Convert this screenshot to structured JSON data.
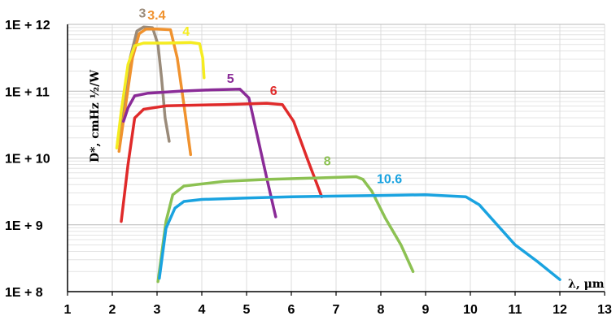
{
  "chart_data": {
    "type": "line",
    "title": "",
    "xlabel": "λ, μm",
    "ylabel": "D*, cmHz ½/W",
    "x_ticks": [
      "1",
      "2",
      "3",
      "4",
      "5",
      "6",
      "7",
      "8",
      "9",
      "10",
      "11",
      "12",
      "13"
    ],
    "y_ticks": [
      "1E + 8",
      "1E + 9",
      "1E + 10",
      "1E + 11",
      "1E + 12"
    ],
    "xlim": [
      1,
      13
    ],
    "ylim_log10": [
      8,
      12
    ],
    "y_scale": "log",
    "grid": true,
    "legend": "none (series labeled inline)",
    "series": [
      {
        "name": "3",
        "color": "#9a8b7a",
        "points": [
          [
            2.12,
            10.25
          ],
          [
            2.25,
            10.8
          ],
          [
            2.4,
            11.5
          ],
          [
            2.55,
            11.9
          ],
          [
            2.7,
            11.96
          ],
          [
            2.9,
            11.95
          ],
          [
            3.02,
            11.7
          ],
          [
            3.1,
            11.2
          ],
          [
            3.18,
            10.6
          ],
          [
            3.27,
            10.25
          ]
        ]
      },
      {
        "name": "3.4",
        "color": "#f0922e",
        "points": [
          [
            2.15,
            10.1
          ],
          [
            2.3,
            10.8
          ],
          [
            2.45,
            11.5
          ],
          [
            2.6,
            11.86
          ],
          [
            2.75,
            11.93
          ],
          [
            3.0,
            11.93
          ],
          [
            3.3,
            11.92
          ],
          [
            3.45,
            11.5
          ],
          [
            3.6,
            10.8
          ],
          [
            3.75,
            10.05
          ]
        ]
      },
      {
        "name": "4",
        "color": "#f5ec20",
        "points": [
          [
            2.1,
            10.15
          ],
          [
            2.2,
            10.7
          ],
          [
            2.35,
            11.4
          ],
          [
            2.5,
            11.68
          ],
          [
            2.7,
            11.72
          ],
          [
            3.2,
            11.72
          ],
          [
            3.75,
            11.73
          ],
          [
            3.95,
            11.71
          ],
          [
            4.02,
            11.5
          ],
          [
            4.05,
            11.2
          ]
        ]
      },
      {
        "name": "5",
        "color": "#8a2b97",
        "points": [
          [
            2.25,
            10.55
          ],
          [
            2.35,
            10.75
          ],
          [
            2.5,
            10.93
          ],
          [
            2.8,
            10.97
          ],
          [
            3.5,
            11.0
          ],
          [
            4.2,
            11.02
          ],
          [
            4.85,
            11.03
          ],
          [
            5.05,
            10.9
          ],
          [
            5.25,
            10.3
          ],
          [
            5.45,
            9.7
          ],
          [
            5.65,
            9.12
          ]
        ]
      },
      {
        "name": "6",
        "color": "#e02a2a",
        "points": [
          [
            2.2,
            9.05
          ],
          [
            2.35,
            9.9
          ],
          [
            2.5,
            10.6
          ],
          [
            2.7,
            10.73
          ],
          [
            3.2,
            10.78
          ],
          [
            4.5,
            10.8
          ],
          [
            5.45,
            10.82
          ],
          [
            5.8,
            10.8
          ],
          [
            6.05,
            10.55
          ],
          [
            6.35,
            10.0
          ],
          [
            6.68,
            9.42
          ]
        ]
      },
      {
        "name": "8",
        "color": "#8cc152",
        "points": [
          [
            3.02,
            8.15
          ],
          [
            3.2,
            9.05
          ],
          [
            3.35,
            9.45
          ],
          [
            3.6,
            9.58
          ],
          [
            4.5,
            9.65
          ],
          [
            5.5,
            9.68
          ],
          [
            6.5,
            9.7
          ],
          [
            7.45,
            9.72
          ],
          [
            7.6,
            9.68
          ],
          [
            7.8,
            9.5
          ],
          [
            8.1,
            9.1
          ],
          [
            8.45,
            8.7
          ],
          [
            8.72,
            8.3
          ]
        ]
      },
      {
        "name": "10.6",
        "color": "#1aa3e0",
        "points": [
          [
            3.05,
            8.2
          ],
          [
            3.2,
            8.95
          ],
          [
            3.4,
            9.25
          ],
          [
            3.6,
            9.35
          ],
          [
            4.0,
            9.38
          ],
          [
            5.0,
            9.4
          ],
          [
            6.0,
            9.42
          ],
          [
            7.0,
            9.43
          ],
          [
            8.0,
            9.44
          ],
          [
            9.0,
            9.45
          ],
          [
            9.9,
            9.42
          ],
          [
            10.2,
            9.3
          ],
          [
            10.6,
            9.0
          ],
          [
            11.0,
            8.7
          ],
          [
            11.5,
            8.45
          ],
          [
            12.0,
            8.18
          ]
        ]
      }
    ]
  }
}
